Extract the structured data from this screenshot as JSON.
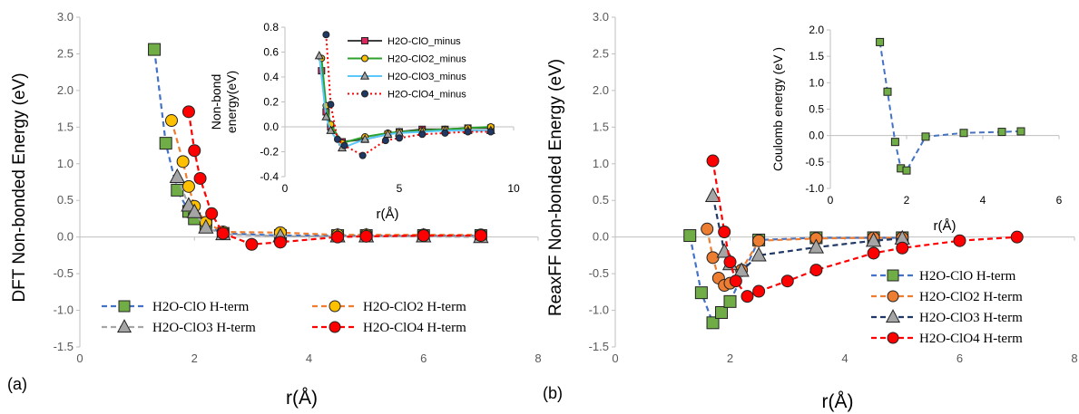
{
  "chart_data": [
    {
      "id": "a_main",
      "panel_label": "(a)",
      "type": "scatter",
      "xlabel": "r(Å)",
      "ylabel": "DFT Non-bonded Energy (eV)",
      "xlim": [
        0,
        8
      ],
      "ylim": [
        -1.5,
        3.0
      ],
      "xticks": [
        "0",
        "2",
        "4",
        "6",
        "8"
      ],
      "yticks": [
        "-1.5",
        "-1.0",
        "-0.5",
        "0.0",
        "0.5",
        "1.0",
        "1.5",
        "2.0",
        "2.5",
        "3.0"
      ],
      "legend_position": "bottom",
      "series": [
        {
          "name": "H2O-ClO H-term",
          "color": "#4472c4",
          "marker": "square",
          "fill": "#70ad47",
          "x": [
            1.3,
            1.5,
            1.7,
            1.9,
            2.0,
            2.2,
            2.5,
            3.5,
            4.5,
            5.0,
            6.0,
            7.0
          ],
          "y": [
            2.56,
            1.28,
            0.64,
            0.35,
            0.25,
            0.15,
            0.05,
            0.02,
            0.02,
            0.02,
            0.02,
            0.02
          ]
        },
        {
          "name": "H2O-ClO2 H-term",
          "color": "#ed7d31",
          "marker": "circle",
          "fill": "#ffc000",
          "x": [
            1.6,
            1.8,
            1.9,
            2.0,
            2.2,
            2.5,
            3.5,
            4.5,
            5.0,
            6.0,
            7.0
          ],
          "y": [
            1.59,
            1.03,
            0.69,
            0.42,
            0.2,
            0.07,
            0.06,
            0.03,
            0.03,
            0.03,
            0.03
          ]
        },
        {
          "name": "H2O-ClO3 H-term",
          "color": "#a5a5a5",
          "marker": "triangle",
          "fill": "#a5a5a5",
          "x": [
            1.7,
            1.9,
            2.0,
            2.2,
            2.5,
            3.5,
            4.5,
            5.0,
            6.0,
            7.0
          ],
          "y": [
            0.82,
            0.43,
            0.34,
            0.13,
            0.04,
            0.01,
            0.01,
            0.01,
            0.01,
            0.0
          ]
        },
        {
          "name": "H2O-ClO4 H-term",
          "color": "#ff0000",
          "marker": "circle",
          "fill": "#ff0000",
          "x": [
            1.9,
            2.0,
            2.1,
            2.3,
            2.5,
            3.0,
            3.5,
            4.5,
            5.0,
            6.0,
            7.0
          ],
          "y": [
            1.71,
            1.18,
            0.8,
            0.32,
            0.05,
            -0.1,
            -0.07,
            0.0,
            0.01,
            0.02,
            0.02
          ]
        }
      ]
    },
    {
      "id": "a_inset",
      "type": "scatter",
      "xlabel": "r(Å)",
      "ylabel_lines": [
        "Non-bond",
        "energy(eV)"
      ],
      "xlim": [
        0,
        10
      ],
      "ylim": [
        -0.4,
        0.8
      ],
      "xticks": [
        "0",
        "5",
        "10"
      ],
      "yticks": [
        "-0.4",
        "-0.2",
        "0.0",
        "0.2",
        "0.4",
        "0.6",
        "0.8"
      ],
      "legend_position": "top-right",
      "series": [
        {
          "name": "H2O-ClO_minus",
          "color": "#404040",
          "marker": "square",
          "fill": "#e0245e",
          "dash": "solid",
          "x": [
            1.6,
            1.8,
            2.0,
            2.5,
            3.5,
            4.5,
            5.0,
            6.0,
            7.0,
            8.0,
            9.0
          ],
          "y": [
            0.45,
            0.12,
            0.0,
            -0.12,
            -0.1,
            -0.06,
            -0.04,
            -0.02,
            -0.02,
            -0.01,
            -0.01
          ]
        },
        {
          "name": "H2O-ClO2_minus",
          "color": "#2ca02c",
          "marker": "circle",
          "fill": "#ffc000",
          "dash": "solid",
          "x": [
            1.6,
            1.8,
            2.0,
            2.5,
            3.5,
            4.5,
            5.0,
            6.0,
            7.0,
            8.0,
            9.0
          ],
          "y": [
            0.55,
            0.17,
            0.02,
            -0.13,
            -0.08,
            -0.05,
            -0.04,
            -0.03,
            -0.02,
            -0.01,
            0.0
          ]
        },
        {
          "name": "H2O-ClO3_minus",
          "color": "#5ac8fa",
          "marker": "triangle",
          "fill": "#a5a5a5",
          "dash": "solid",
          "x": [
            1.5,
            1.8,
            2.0,
            2.5,
            3.5,
            4.5,
            5.0,
            6.0,
            7.0,
            8.0,
            9.0
          ],
          "y": [
            0.57,
            0.08,
            -0.03,
            -0.17,
            -0.1,
            -0.06,
            -0.05,
            -0.04,
            -0.03,
            -0.03,
            -0.03
          ]
        },
        {
          "name": "H2O-ClO4_minus",
          "color": "#ff0000",
          "marker": "circle",
          "fill": "#1f3864",
          "dash": "dotted",
          "x": [
            1.8,
            2.0,
            2.3,
            2.6,
            3.4,
            4.4,
            5.0,
            6.0,
            7.0,
            8.0,
            9.0
          ],
          "y": [
            0.74,
            0.18,
            -0.1,
            -0.15,
            -0.23,
            -0.11,
            -0.09,
            -0.06,
            -0.05,
            -0.04,
            -0.04
          ]
        }
      ]
    },
    {
      "id": "b_main",
      "panel_label": "(b)",
      "type": "scatter",
      "xlabel": "r(Å)",
      "ylabel": "ReaxFF Non-bonded Energy (eV)",
      "xlim": [
        0,
        8
      ],
      "ylim": [
        -1.5,
        3.0
      ],
      "xticks": [
        "0",
        "2",
        "4",
        "6",
        "8"
      ],
      "yticks": [
        "-1.5",
        "-1.0",
        "-0.5",
        "0.0",
        "0.5",
        "1.0",
        "1.5",
        "2.0",
        "2.5",
        "3.0"
      ],
      "legend_position": "bottom-right",
      "series": [
        {
          "name": "H2O-ClO H-term",
          "color": "#4472c4",
          "marker": "square",
          "fill": "#70ad47",
          "x": [
            1.3,
            1.5,
            1.7,
            1.85,
            2.0,
            2.5,
            3.5,
            4.5,
            5.0
          ],
          "y": [
            0.02,
            -0.76,
            -1.17,
            -1.03,
            -0.88,
            -0.04,
            -0.01,
            -0.01,
            -0.01
          ]
        },
        {
          "name": "H2O-ClO2 H-term",
          "color": "#ed7d31",
          "marker": "circle",
          "fill": "#ed7d31",
          "x": [
            1.6,
            1.7,
            1.8,
            1.9,
            2.0,
            2.2,
            2.5,
            3.5,
            4.5,
            5.0
          ],
          "y": [
            0.11,
            -0.28,
            -0.56,
            -0.66,
            -0.63,
            -0.45,
            -0.05,
            -0.02,
            -0.01,
            -0.01
          ]
        },
        {
          "name": "H2O-ClO3 H-term",
          "color": "#1f3864",
          "marker": "triangle",
          "fill": "#a5a5a5",
          "x": [
            1.7,
            1.9,
            2.0,
            2.2,
            2.5,
            3.5,
            4.5,
            5.0
          ],
          "y": [
            0.56,
            -0.2,
            -0.37,
            -0.46,
            -0.25,
            -0.14,
            -0.05,
            -0.02
          ]
        },
        {
          "name": "H2O-ClO4 H-term",
          "color": "#ff0000",
          "marker": "circle",
          "fill": "#ff0000",
          "x": [
            1.7,
            1.9,
            2.0,
            2.1,
            2.3,
            2.5,
            3.0,
            3.5,
            4.5,
            5.0,
            6.0,
            7.0
          ],
          "y": [
            1.04,
            0.07,
            -0.34,
            -0.6,
            -0.81,
            -0.74,
            -0.6,
            -0.45,
            -0.22,
            -0.15,
            -0.05,
            0.0
          ]
        }
      ]
    },
    {
      "id": "b_inset",
      "type": "scatter",
      "xlabel": "r(Å)",
      "ylabel": "Coulomb energy (eV )",
      "xlim": [
        0,
        6
      ],
      "ylim": [
        -1.0,
        2.0
      ],
      "xticks": [
        "0",
        "2",
        "4",
        "6"
      ],
      "yticks": [
        "-1.0",
        "-0.5",
        "0.0",
        "0.5",
        "1.0",
        "1.5",
        "2.0"
      ],
      "series": [
        {
          "name": "",
          "color": "#4472c4",
          "marker": "square",
          "fill": "#70ad47",
          "x": [
            1.3,
            1.5,
            1.7,
            1.85,
            2.0,
            2.5,
            3.5,
            4.5,
            5.0
          ],
          "y": [
            1.77,
            0.83,
            -0.12,
            -0.62,
            -0.66,
            -0.02,
            0.05,
            0.07,
            0.08
          ]
        }
      ]
    }
  ]
}
